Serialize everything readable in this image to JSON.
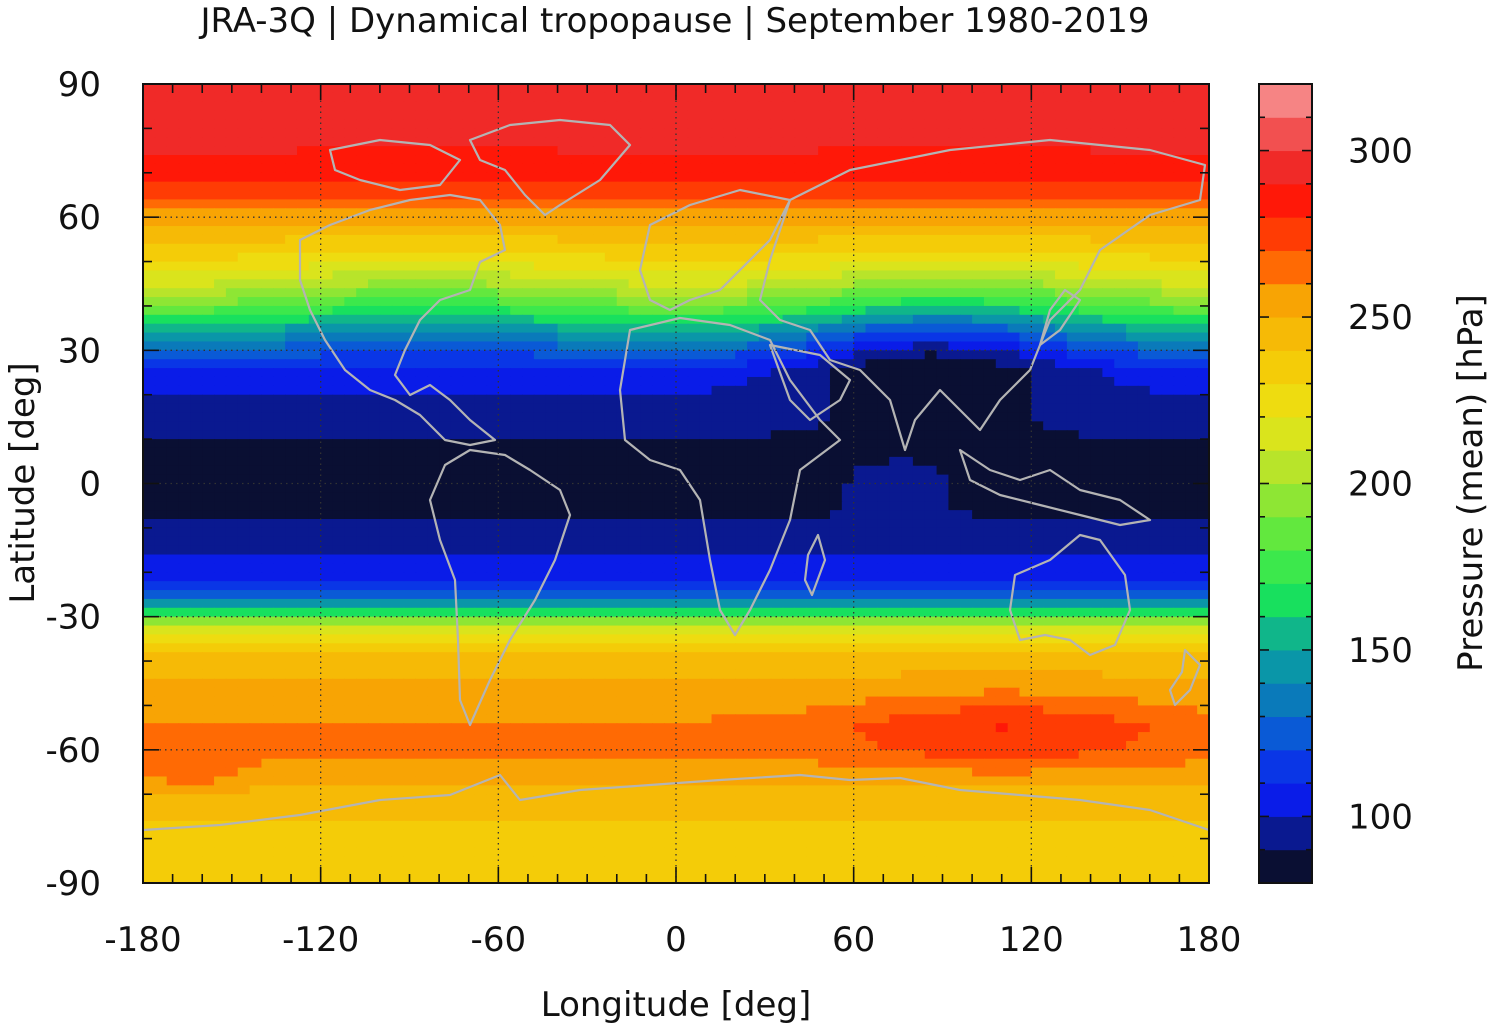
{
  "chart_data": {
    "type": "heatmap",
    "title": "JRA-3Q | Dynamical tropopause | September 1980-2019",
    "xlabel": "Longitude [deg]",
    "ylabel": "Latitude [deg]",
    "xlim": [
      -180,
      180
    ],
    "ylim": [
      -90,
      90
    ],
    "x_ticks": [
      "-180",
      "-120",
      "-60",
      "0",
      "60",
      "120",
      "180"
    ],
    "y_ticks": [
      "90",
      "60",
      "30",
      "0",
      "-30",
      "-60",
      "-90"
    ],
    "grid": "dotted",
    "colorbar": {
      "label": "Pressure (mean) [hPa]",
      "range": [
        80,
        320
      ],
      "step": 10,
      "ticks": [
        "100",
        "150",
        "200",
        "250",
        "300"
      ],
      "levels": [
        80,
        90,
        100,
        110,
        120,
        130,
        140,
        150,
        160,
        170,
        180,
        190,
        200,
        210,
        220,
        230,
        240,
        250,
        260,
        270,
        280,
        290,
        300,
        310
      ],
      "colors": [
        "#0a0f33",
        "#0a1990",
        "#0a1ce8",
        "#0a36e6",
        "#0a5ad6",
        "#0a7aba",
        "#0a96a8",
        "#10b68a",
        "#18e05e",
        "#3ce84c",
        "#62e83e",
        "#8ee634",
        "#b8e42a",
        "#dae41c",
        "#eedc10",
        "#f4cc08",
        "#f6ba06",
        "#f8a404",
        "#ff6a04",
        "#ff3c04",
        "#ff1808",
        "#f02a28",
        "#f25050",
        "#f68484",
        "#ffd0d0"
      ]
    },
    "zonal_mean_profile": {
      "lat": [
        90,
        80,
        70,
        65,
        60,
        55,
        50,
        45,
        40,
        35,
        30,
        25,
        20,
        15,
        10,
        5,
        0,
        -5,
        -10,
        -15,
        -20,
        -25,
        -28,
        -30,
        -33,
        -36,
        -40,
        -45,
        -50,
        -55,
        -60,
        -65,
        -70,
        -75,
        -80,
        -90
      ],
      "pressure_hPa": [
        300,
        295,
        285,
        275,
        255,
        240,
        225,
        205,
        180,
        150,
        125,
        105,
        100,
        95,
        90,
        86,
        86,
        88,
        92,
        98,
        105,
        120,
        150,
        185,
        215,
        232,
        245,
        250,
        255,
        262,
        262,
        255,
        245,
        240,
        235,
        230
      ]
    },
    "colormap_levels_hPa": [
      80,
      310
    ]
  }
}
